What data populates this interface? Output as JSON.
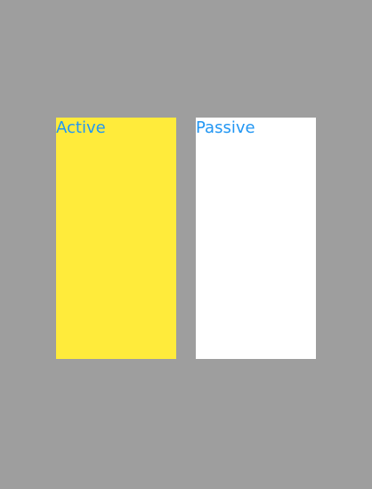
{
  "panels": {
    "active": {
      "label": "Active",
      "background": "#ffeb3b"
    },
    "passive": {
      "label": "Passive",
      "background": "#ffffff"
    }
  },
  "colors": {
    "page_background": "#9e9e9e",
    "label_text": "#2196f3"
  }
}
